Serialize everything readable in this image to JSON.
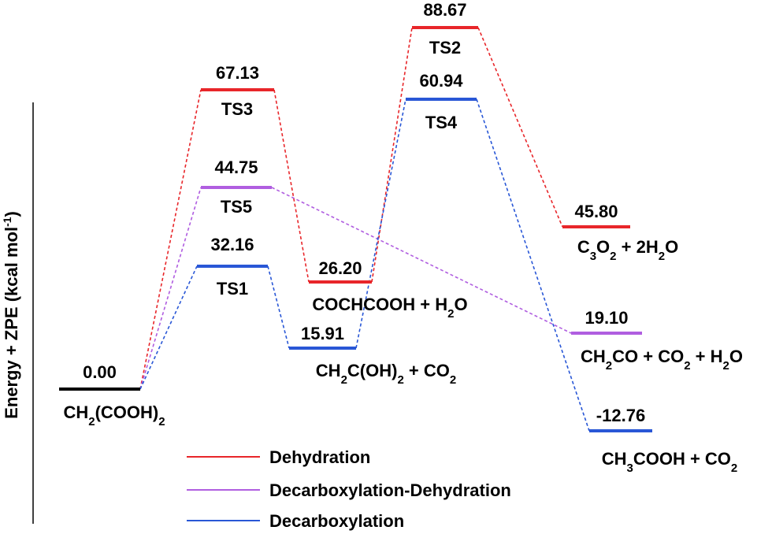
{
  "chart_data": {
    "type": "energy-profile",
    "y_label": "Energy + ZPE (kcal mol-1)",
    "values": [
      0,
      67.13,
      44.75,
      32.16,
      26.2,
      15.91,
      88.67,
      60.94,
      45.8,
      19.1,
      -12.76
    ],
    "value_labels": [
      "0.00",
      "67.13",
      "44.75",
      "32.16",
      "26.20",
      "15.91",
      "88.67",
      "60.94",
      "45.80",
      "19.10",
      "-12.76"
    ],
    "labels": [
      "CH2(COOH)2",
      "TS3",
      "TS5",
      "TS1",
      "COCHCOOH + H2O",
      "CH2C(OH)2 + CO2",
      "TS2",
      "TS4",
      "C3O2 + 2H2O",
      "CH2CO + CO2 + H2O",
      "CH3COOH + CO2"
    ],
    "colors": [
      "#000000",
      "#e8262a",
      "#b05ee0",
      "#2957d6",
      "#e8262a",
      "#2957d6",
      "#e8262a",
      "#2957d6",
      "#e8262a",
      "#b05ee0",
      "#2957d6"
    ],
    "series": [
      {
        "name": "Dehydration",
        "color": "#e8262a"
      },
      {
        "name": "Decarboxylation-Dehydration",
        "color": "#b05ee0"
      },
      {
        "name": "Decarboxylation",
        "color": "#2957d6"
      }
    ]
  }
}
